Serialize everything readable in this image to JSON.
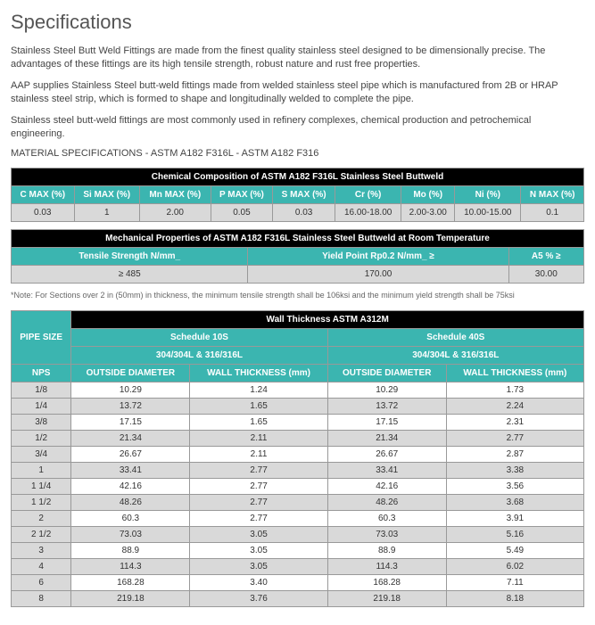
{
  "title": "Specifications",
  "paragraphs": [
    "Stainless Steel Butt Weld Fittings are made from the finest quality stainless steel designed to be dimensionally precise. The advantages of these fittings are its high tensile strength, robust nature and rust free properties.",
    "AAP supplies Stainless Steel butt-weld fittings made from welded stainless steel pipe which is manufactured from 2B or HRAP stainless steel strip, which is formed to shape and longitudinally welded to complete the pipe.",
    "Stainless steel butt-weld fittings are most commonly used in refinery complexes, chemical production and petrochemical engineering."
  ],
  "material_spec": "MATERIAL SPECIFICATIONS - ASTM A182 F316L - ASTM A182 F316",
  "chem": {
    "title": "Chemical Composition of ASTM A182 F316L Stainless Steel Buttweld",
    "headers": [
      "C MAX (%)",
      "Si MAX (%)",
      "Mn MAX (%)",
      "P MAX (%)",
      "S MAX (%)",
      "Cr (%)",
      "Mo (%)",
      "Ni (%)",
      "N MAX (%)"
    ],
    "row": [
      "0.03",
      "1",
      "2.00",
      "0.05",
      "0.03",
      "16.00-18.00",
      "2.00-3.00",
      "10.00-15.00",
      "0.1"
    ]
  },
  "mech": {
    "title": "Mechanical Properties of  ASTM A182 F316L Stainless Steel Buttweld at Room Temperature",
    "headers": [
      "Tensile Strength N/mm_",
      "Yield Point Rp0.2  N/mm_ ≥",
      "A5 % ≥"
    ],
    "row": [
      "≥ 485",
      "170.00",
      "30.00"
    ]
  },
  "note": "*Note: For Sections over 2 in (50mm) in thickness, the minimum tensile strength shall be 106ksi and the minimum yield strength shall be 75ksi",
  "wall": {
    "title": "Wall Thickness ASTM A312M",
    "pipe_size": "PIPE SIZE",
    "sched10": "Schedule 10S",
    "sched40": "Schedule 40S",
    "mat": "304/304L & 316/316L",
    "nps": "NPS",
    "od": "OUTSIDE DIAMETER",
    "wt": "WALL THICKNESS (mm)",
    "rows": [
      [
        "1/8",
        "10.29",
        "1.24",
        "10.29",
        "1.73"
      ],
      [
        "1/4",
        "13.72",
        "1.65",
        "13.72",
        "2.24"
      ],
      [
        "3/8",
        "17.15",
        "1.65",
        "17.15",
        "2.31"
      ],
      [
        "1/2",
        "21.34",
        "2.11",
        "21.34",
        "2.77"
      ],
      [
        "3/4",
        "26.67",
        "2.11",
        "26.67",
        "2.87"
      ],
      [
        "1",
        "33.41",
        "2.77",
        "33.41",
        "3.38"
      ],
      [
        "1 1/4",
        "42.16",
        "2.77",
        "42.16",
        "3.56"
      ],
      [
        "1 1/2",
        "48.26",
        "2.77",
        "48.26",
        "3.68"
      ],
      [
        "2",
        "60.3",
        "2.77",
        "60.3",
        "3.91"
      ],
      [
        "2 1/2",
        "73.03",
        "3.05",
        "73.03",
        "5.16"
      ],
      [
        "3",
        "88.9",
        "3.05",
        "88.9",
        "5.49"
      ],
      [
        "4",
        "114.3",
        "3.05",
        "114.3",
        "6.02"
      ],
      [
        "6",
        "168.28",
        "3.40",
        "168.28",
        "7.11"
      ],
      [
        "8",
        "219.18",
        "3.76",
        "219.18",
        "8.18"
      ]
    ]
  },
  "colors": {
    "teal": "#3bb5b0",
    "black": "#000000",
    "row_alt": "#d9d9d9"
  }
}
